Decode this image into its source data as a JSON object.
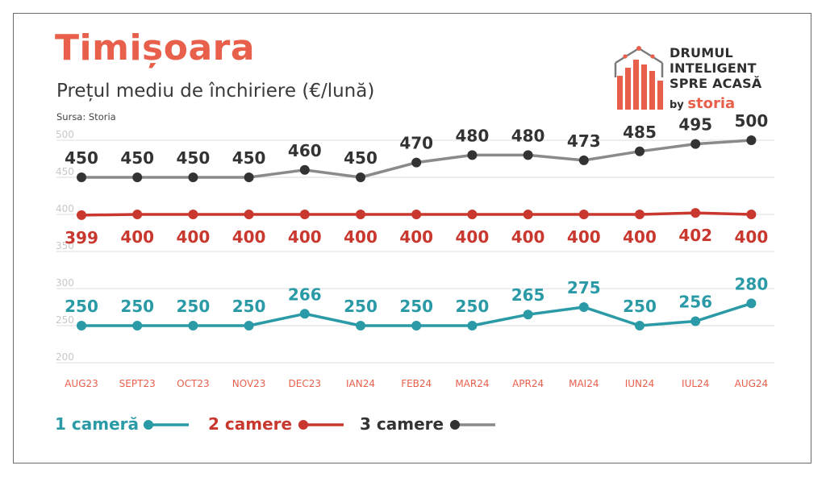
{
  "header": {
    "title": "Timișoara",
    "subtitle": "Prețul mediu de închiriere (€/lună)",
    "source": "Sursa: Storia"
  },
  "brand": {
    "line1": "DRUMUL",
    "line2": "INTELIGENT",
    "line3": "SPRE ACASĂ",
    "by": "by",
    "storia": "storia"
  },
  "colors": {
    "one_room": "#2a9aa6",
    "two_rooms": "#c9382f",
    "three_rooms_label": "#333333",
    "three_rooms_line": "#8a8a8a",
    "accent": "#e8604c"
  },
  "chart_data": {
    "type": "line",
    "categories": [
      "AUG23",
      "SEPT23",
      "OCT23",
      "NOV23",
      "DEC23",
      "IAN24",
      "FEB24",
      "MAR24",
      "APR24",
      "MAI24",
      "IUN24",
      "IUL24",
      "AUG24"
    ],
    "ylim": [
      200,
      500
    ],
    "yticks": [
      "500",
      "450",
      "400",
      "350",
      "300",
      "250",
      "200"
    ],
    "grid": true,
    "legend_position": "bottom-left",
    "series": [
      {
        "name": "1 cameră",
        "values": [
          250,
          250,
          250,
          250,
          266,
          250,
          250,
          250,
          265,
          275,
          250,
          256,
          280
        ],
        "labels_above": true
      },
      {
        "name": "2 camere",
        "values": [
          399,
          400,
          400,
          400,
          400,
          400,
          400,
          400,
          400,
          400,
          400,
          402,
          400
        ],
        "labels_above": false
      },
      {
        "name": "3 camere",
        "values": [
          450,
          450,
          450,
          450,
          460,
          450,
          470,
          480,
          480,
          473,
          485,
          495,
          500
        ],
        "labels_above": true
      }
    ]
  }
}
